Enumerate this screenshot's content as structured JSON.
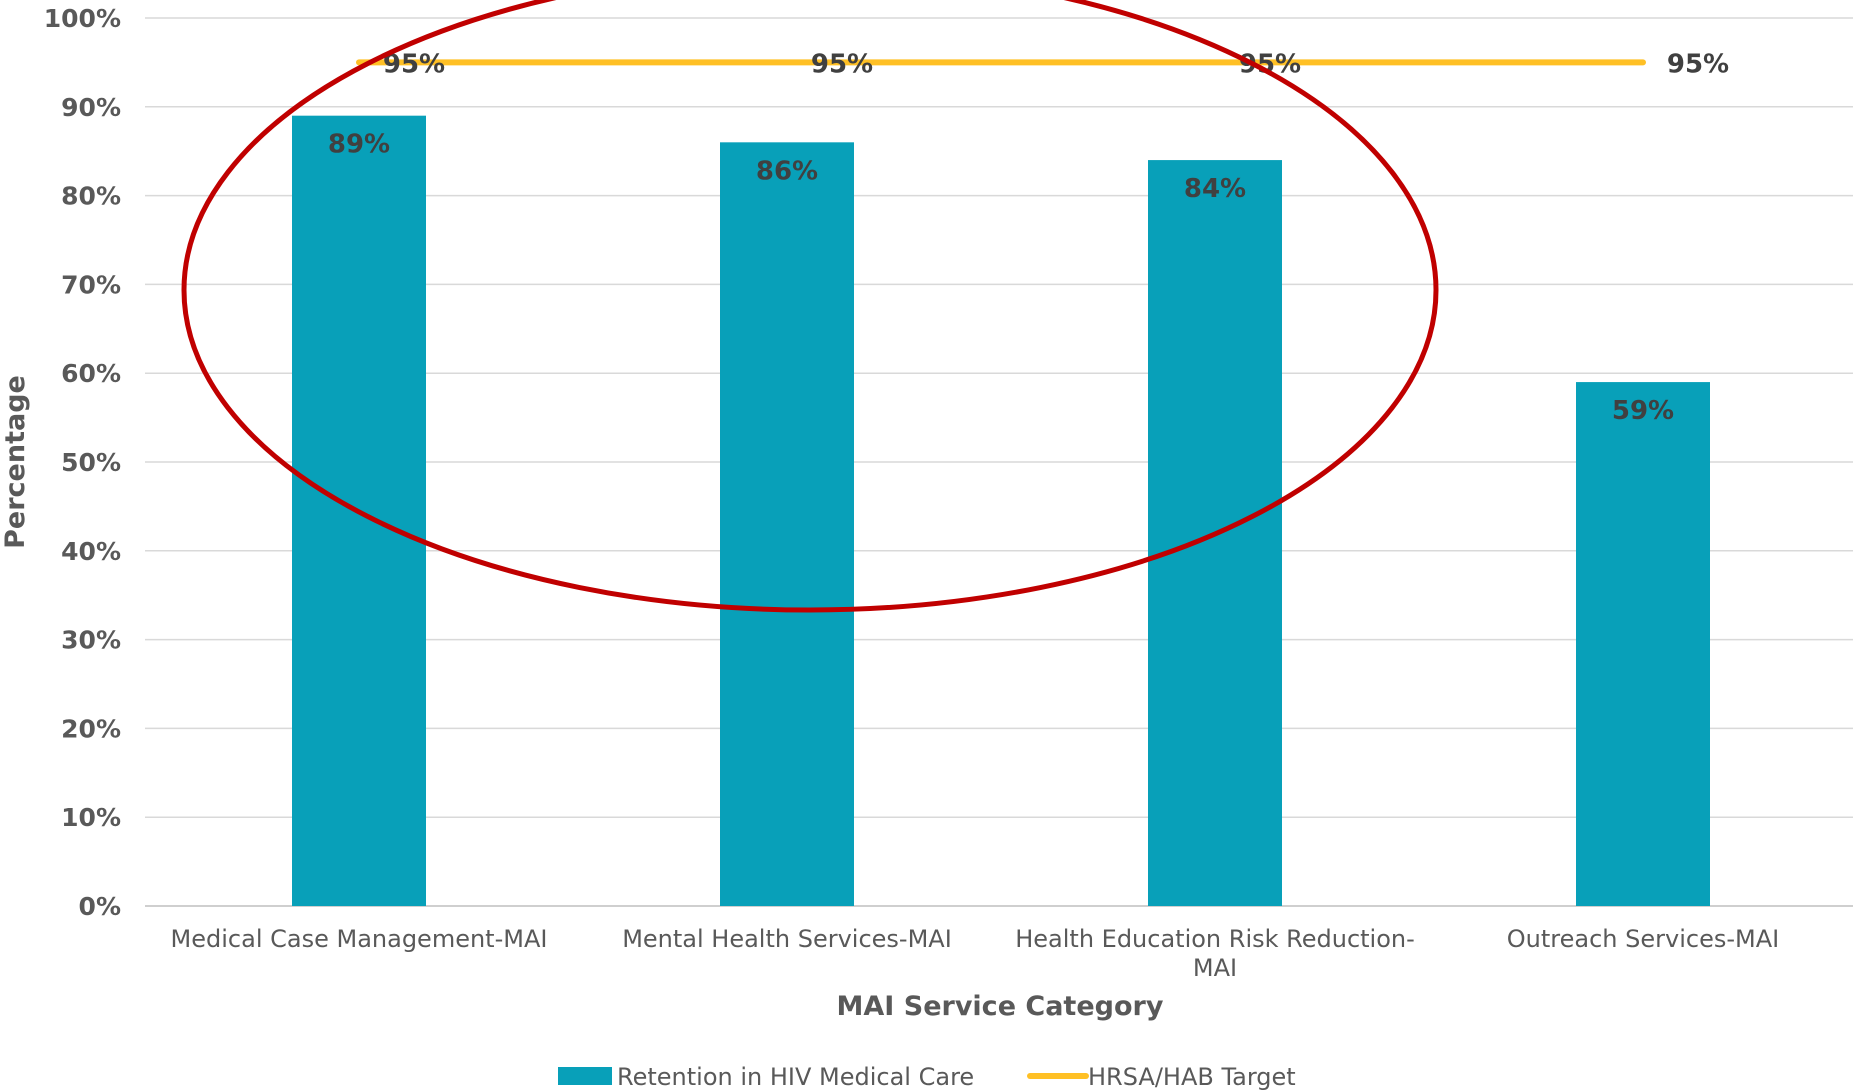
{
  "chart_data": {
    "type": "bar",
    "title": "",
    "xlabel": "MAI Service Category",
    "ylabel": "Percentage",
    "ylim": [
      0,
      100
    ],
    "yticks": [
      "0%",
      "10%",
      "20%",
      "30%",
      "40%",
      "50%",
      "60%",
      "70%",
      "80%",
      "90%",
      "100%"
    ],
    "categories": [
      [
        "Medical Case Management-MAI"
      ],
      [
        "Mental Health Services-MAI"
      ],
      [
        "Health Education Risk Reduction-",
        "MAI"
      ],
      [
        "Outreach Services-MAI"
      ]
    ],
    "series": [
      {
        "name": "Retention in HIV Medical Care",
        "type": "bar",
        "color": "#08A0B9",
        "values": [
          89,
          86,
          84,
          59
        ],
        "labels": [
          "89%",
          "86%",
          "84%",
          "59%"
        ]
      },
      {
        "name": "HRSA/HAB Target",
        "type": "line",
        "color": "#FFC025",
        "values": [
          95,
          95,
          95,
          95
        ],
        "labels": [
          "95%",
          "95%",
          "95%",
          "95%"
        ]
      }
    ],
    "grid": true,
    "legend": "bottom-center",
    "annotation": {
      "shape": "ellipse",
      "color": "#C00000",
      "encloses": [
        0,
        1,
        2
      ]
    }
  }
}
